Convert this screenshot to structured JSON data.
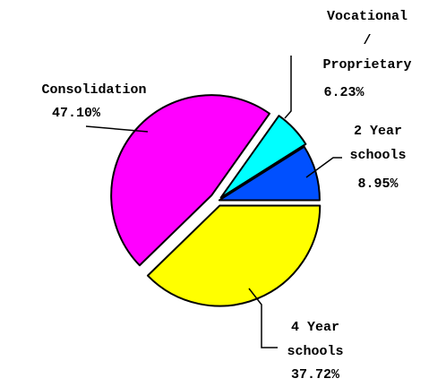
{
  "chart_data": {
    "type": "pie",
    "categories": [
      "2 Year\nschools",
      "Vocational\n/\nProprietary",
      "Consolidation",
      "4 Year\nschools"
    ],
    "values": [
      8.95,
      6.23,
      47.1,
      37.72
    ],
    "value_labels": [
      "8.95%",
      "6.23%",
      "47.10%",
      "37.72%"
    ],
    "colors": [
      "#0050ff",
      "#00ffff",
      "#ff00ff",
      "#ffff00"
    ]
  }
}
